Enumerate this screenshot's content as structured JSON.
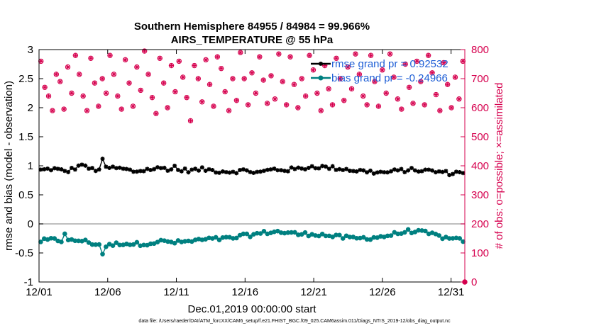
{
  "chart_data": {
    "type": "line",
    "title_lines": [
      "Southern Hemisphere 84955 / 84984 = 99.966%",
      "AIRS_TEMPERATURE @ 55 hPa"
    ],
    "xlabel": "Dec.01,2019 00:00:00 start",
    "ylabel_left": "rmse and bias (model - observation)",
    "ylabel_right": "# of obs: o=possible; ×=assimilated",
    "xlim": [
      0,
      31
    ],
    "ylim_left": [
      -1,
      3
    ],
    "ylim_right": [
      0,
      800
    ],
    "x_ticks": [
      0,
      5,
      10,
      15,
      20,
      25,
      30
    ],
    "x_tick_labels": [
      "12/01",
      "12/06",
      "12/11",
      "12/16",
      "12/21",
      "12/26",
      "12/31"
    ],
    "y_left_ticks": [
      -1,
      -0.5,
      0,
      0.5,
      1,
      1.5,
      2,
      2.5,
      3
    ],
    "y_left_tick_labels": [
      "-1",
      "-0.5",
      "0",
      "0.5",
      "1",
      "1.5",
      "2",
      "2.5",
      "3"
    ],
    "y_right_ticks": [
      0,
      100,
      200,
      300,
      400,
      500,
      600,
      700,
      800
    ],
    "y_right_tick_labels": [
      "0",
      "100",
      "200",
      "300",
      "400",
      "500",
      "600",
      "700",
      "800"
    ],
    "legend": [
      {
        "label": "rmse grand pr = 0.92532",
        "color": "#000000"
      },
      {
        "label": "bias grand pr = -0.24966",
        "color": "#008080"
      }
    ],
    "colors": {
      "rmse": "#000000",
      "bias": "#008080",
      "obs": "#d6004e",
      "legend_text": "#1f5fd6",
      "zero_line": "#aaaaaa"
    },
    "rmse_anchors": {
      "x": [
        0,
        1,
        2,
        3,
        4,
        5,
        6,
        7,
        8,
        9,
        10,
        11,
        12,
        13,
        14,
        15,
        16,
        17,
        18,
        19,
        20,
        21,
        22,
        23,
        24,
        25,
        26,
        27,
        28,
        29,
        30,
        31
      ],
      "y": [
        0.92,
        0.95,
        0.9,
        1.0,
        0.93,
        0.97,
        0.95,
        0.9,
        0.94,
        0.96,
        0.93,
        0.92,
        0.94,
        0.91,
        0.9,
        0.92,
        0.88,
        0.94,
        0.93,
        0.95,
        0.99,
        0.97,
        0.95,
        0.92,
        0.9,
        0.88,
        0.91,
        0.93,
        0.92,
        0.9,
        0.87,
        0.9
      ]
    },
    "rmse_noise": 0.035,
    "rmse_spikes": [
      {
        "x": 4.75,
        "y": 1.12
      },
      {
        "x": 3.1,
        "y": 1.02
      },
      {
        "x": 10.0,
        "y": 1.0
      }
    ],
    "bias_anchors": {
      "x": [
        0,
        1,
        2,
        3,
        4,
        5,
        6,
        7,
        8,
        9,
        10,
        11,
        12,
        13,
        14,
        15,
        16,
        17,
        18,
        19,
        20,
        21,
        22,
        23,
        24,
        25,
        26,
        27,
        28,
        29,
        30,
        31
      ],
      "y": [
        -0.3,
        -0.27,
        -0.3,
        -0.28,
        -0.34,
        -0.38,
        -0.33,
        -0.35,
        -0.33,
        -0.3,
        -0.32,
        -0.3,
        -0.27,
        -0.26,
        -0.25,
        -0.2,
        -0.17,
        -0.13,
        -0.15,
        -0.18,
        -0.17,
        -0.2,
        -0.23,
        -0.25,
        -0.24,
        -0.22,
        -0.17,
        -0.12,
        -0.15,
        -0.2,
        -0.27,
        -0.28
      ]
    },
    "bias_noise": 0.035,
    "bias_spikes": [
      {
        "x": 4.75,
        "y": -0.52
      },
      {
        "x": 1.85,
        "y": -0.17
      }
    ],
    "obs_count_per_period": [
      760,
      670,
      640,
      590,
      715,
      690,
      595,
      740,
      650,
      780,
      715,
      640,
      590,
      770,
      685,
      605,
      700,
      650,
      780,
      715,
      640,
      595,
      765,
      685,
      605,
      740,
      660,
      795,
      715,
      635,
      580,
      770,
      685,
      600,
      745,
      655,
      760,
      705,
      635,
      555,
      745,
      700,
      620,
      765,
      680,
      605,
      775,
      735,
      655,
      590,
      700,
      625,
      790,
      700,
      610,
      720,
      650,
      775,
      695,
      615,
      710,
      630,
      785,
      690,
      610,
      775,
      680,
      600,
      700,
      640,
      780,
      730,
      650,
      590,
      745,
      665,
      610,
      770,
      700,
      625,
      740,
      665,
      785,
      715,
      640,
      610,
      780,
      690,
      605,
      730,
      650,
      785,
      705,
      630,
      595,
      750,
      670,
      615,
      760,
      690,
      610,
      780,
      720,
      645,
      590,
      755,
      680,
      600,
      705,
      630,
      760
    ],
    "obs_possible_extra": 1
  },
  "footer": "data file: /Users/raeder/DAI/ATM_forcXX/CAM6_setup/f.e21.FHIST_BGC.f09_025.CAM6assim.011/Diags_NTrS_2019-12/obs_diag_output.nc"
}
